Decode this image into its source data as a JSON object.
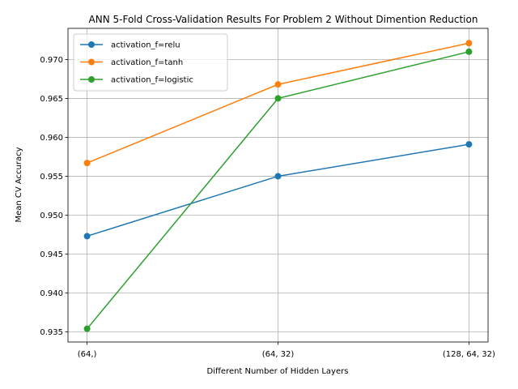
{
  "chart_data": {
    "type": "line",
    "title": "ANN 5-Fold Cross-Validation Results For Problem 2 Without Dimention Reduction",
    "xlabel": "Different Number of Hidden Layers",
    "ylabel": "Mean CV Accuracy",
    "categories": [
      "(64,)",
      "(64, 32)",
      "(128, 64, 32)"
    ],
    "ylim": [
      0.9337,
      0.974
    ],
    "yticks": [
      "0.935",
      "0.940",
      "0.945",
      "0.950",
      "0.955",
      "0.960",
      "0.965",
      "0.970"
    ],
    "grid": true,
    "legend_position": "top-left",
    "series": [
      {
        "name": "activation_f=relu",
        "color": "#1f77b4",
        "values": [
          0.9473,
          0.955,
          0.9591
        ]
      },
      {
        "name": "activation_f=tanh",
        "color": "#ff7f0e",
        "values": [
          0.9567,
          0.9668,
          0.9721
        ]
      },
      {
        "name": "activation_f=logistic",
        "color": "#2ca02c",
        "values": [
          0.9354,
          0.965,
          0.971
        ]
      }
    ]
  }
}
